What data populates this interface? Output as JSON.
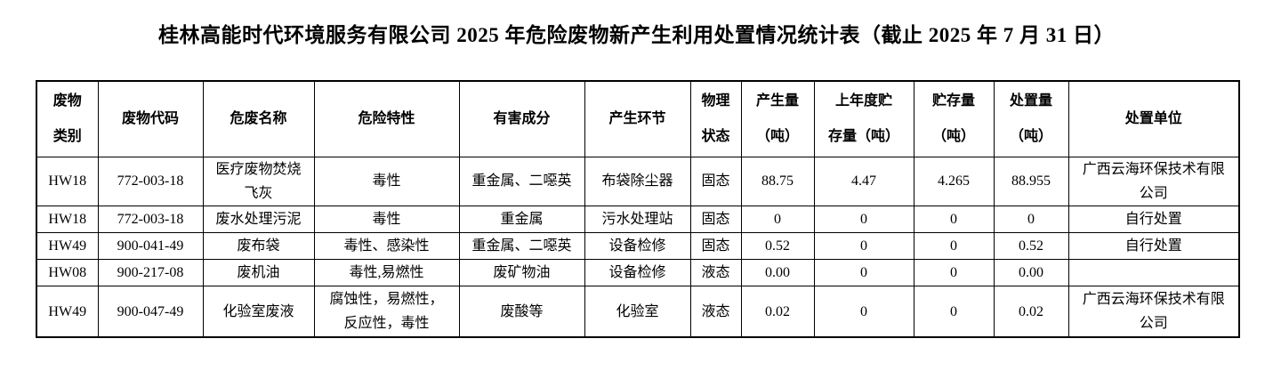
{
  "title": "桂林高能时代环境服务有限公司 2025 年危险废物新产生利用处置情况统计表（截止 2025 年 7 月 31 日）",
  "colors": {
    "text": "#000000",
    "background": "#ffffff",
    "border": "#000000"
  },
  "table": {
    "headers": [
      "废物\n类别",
      "废物代码",
      "危废名称",
      "危险特性",
      "有害成分",
      "产生环节",
      "物理\n状态",
      "产生量\n（吨）",
      "上年度贮\n存量（吨）",
      "贮存量\n（吨）",
      "处置量\n（吨）",
      "处置单位"
    ],
    "rows": [
      [
        "HW18",
        "772-003-18",
        "医疗废物焚烧\n飞灰",
        "毒性",
        "重金属、二噁英",
        "布袋除尘器",
        "固态",
        "88.75",
        "4.47",
        "4.265",
        "88.955",
        "广西云海环保技术有限\n公司"
      ],
      [
        "HW18",
        "772-003-18",
        "废水处理污泥",
        "毒性",
        "重金属",
        "污水处理站",
        "固态",
        "0",
        "0",
        "0",
        "0",
        "自行处置"
      ],
      [
        "HW49",
        "900-041-49",
        "废布袋",
        "毒性、感染性",
        "重金属、二噁英",
        "设备检修",
        "固态",
        "0.52",
        "0",
        "0",
        "0.52",
        "自行处置"
      ],
      [
        "HW08",
        "900-217-08",
        "废机油",
        "毒性,易燃性",
        "废矿物油",
        "设备检修",
        "液态",
        "0.00",
        "0",
        "0",
        "0.00",
        ""
      ],
      [
        "HW49",
        "900-047-49",
        "化验室废液",
        "腐蚀性，易燃性，\n反应性，毒性",
        "废酸等",
        "化验室",
        "液态",
        "0.02",
        "0",
        "0",
        "0.02",
        "广西云海环保技术有限\n公司"
      ]
    ]
  }
}
